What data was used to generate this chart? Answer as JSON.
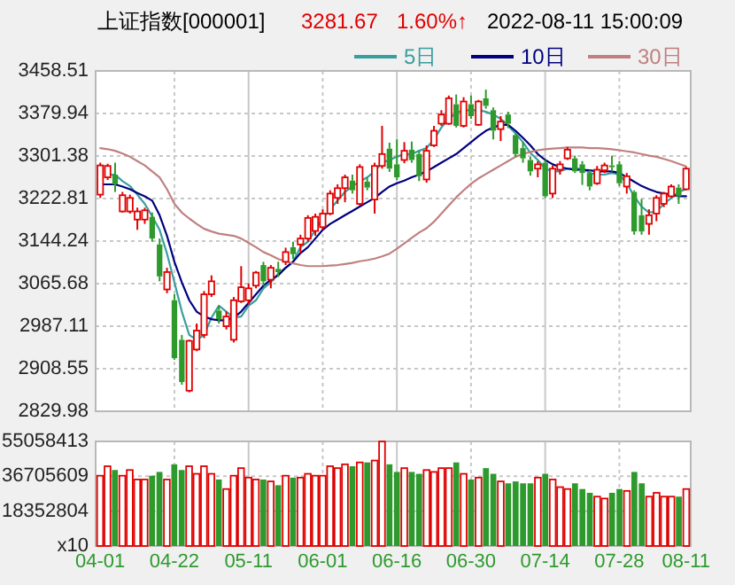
{
  "chart_data": [
    {
      "type": "candlestick",
      "title": "上证指数[000001]",
      "annotations": [
        "3281.67",
        "1.60%↑",
        "2022-08-11 15:00:09"
      ],
      "categories": [
        null,
        null,
        null,
        null,
        null,
        null,
        null,
        null,
        null,
        null,
        null,
        null,
        null,
        null,
        null,
        null,
        null,
        null,
        null,
        null,
        null,
        null,
        null,
        null,
        null,
        null,
        null,
        null,
        null,
        null,
        null,
        null,
        null,
        null,
        null,
        null,
        null,
        null,
        null,
        null,
        null,
        null,
        null,
        null,
        null,
        null,
        null,
        null,
        null,
        null,
        null,
        null,
        null,
        null,
        null,
        null,
        null,
        null,
        null,
        null,
        null,
        null,
        null,
        null,
        null,
        null,
        null,
        null,
        null,
        null,
        null,
        null,
        null,
        null,
        null,
        null,
        null,
        null,
        null,
        null
      ],
      "colors": [
        "#e00000",
        "#e00000",
        "#2e9a2e",
        "#e00000",
        "#e00000",
        "#e00000",
        "#e00000",
        "#2e9a2e",
        "#2e9a2e",
        "#e00000",
        "#2e9a2e",
        "#2e9a2e",
        "#e00000",
        "#e00000",
        "#e00000",
        "#e00000",
        "#2e9a2e",
        "#e00000",
        "#e00000",
        "#e00000",
        "#e00000",
        "#e00000",
        "#2e9a2e",
        "#e00000",
        "#2e9a2e",
        "#e00000",
        "#2e9a2e",
        "#e00000",
        "#e00000",
        "#e00000",
        "#e00000",
        "#e00000",
        "#e00000",
        "#e00000",
        "#2e9a2e",
        "#e00000",
        "#2e9a2e",
        "#e00000",
        "#e00000",
        "#2e9a2e",
        "#2e9a2e",
        "#e00000",
        "#2e9a2e",
        "#2e9a2e",
        "#e00000",
        "#e00000",
        "#e00000",
        "#e00000",
        "#2e9a2e",
        "#e00000",
        "#2e9a2e",
        "#e00000",
        "#2e9a2e",
        "#2e9a2e",
        "#e00000",
        "#2e9a2e",
        "#2e9a2e",
        "#2e9a2e",
        "#2e9a2e",
        "#e00000",
        "#2e9a2e",
        "#e00000",
        "#e00000",
        "#e00000",
        "#2e9a2e",
        "#2e9a2e",
        "#2e9a2e",
        "#e00000",
        "#e00000",
        "#2e9a2e",
        "#2e9a2e",
        "#e00000",
        "#2e9a2e",
        "#2e9a2e",
        "#e00000",
        "#e00000",
        "#e00000",
        "#e00000",
        "#2e9a2e",
        "#e00000"
      ],
      "ohlc": [
        [
          3230,
          3289,
          3224,
          3284
        ],
        [
          3262,
          3287,
          3257,
          3283
        ],
        [
          3267,
          3289,
          3235,
          3249
        ],
        [
          3199,
          3235,
          3197,
          3229
        ],
        [
          3199,
          3230,
          3195,
          3224
        ],
        [
          3184,
          3206,
          3165,
          3199
        ],
        [
          3184,
          3206,
          3176,
          3201
        ],
        [
          3189,
          3197,
          3143,
          3149
        ],
        [
          3138,
          3149,
          3070,
          3079
        ],
        [
          3055,
          3095,
          3048,
          3087
        ],
        [
          3035,
          3046,
          2925,
          2928
        ],
        [
          2962,
          2971,
          2879,
          2884
        ],
        [
          2868,
          2962,
          2865,
          2960
        ],
        [
          2944,
          2992,
          2941,
          2979
        ],
        [
          2971,
          3052,
          2965,
          3046
        ],
        [
          3046,
          3081,
          3041,
          3070
        ],
        [
          3016,
          3025,
          2992,
          3000
        ],
        [
          2987,
          3014,
          2981,
          3005
        ],
        [
          2962,
          3041,
          2957,
          3035
        ],
        [
          3033,
          3098,
          3030,
          3059
        ],
        [
          3035,
          3066,
          3027,
          3057
        ],
        [
          3062,
          3089,
          3057,
          3086
        ],
        [
          3100,
          3106,
          3062,
          3070
        ],
        [
          3073,
          3100,
          3057,
          3095
        ],
        [
          3093,
          3106,
          3078,
          3087
        ],
        [
          3106,
          3132,
          3100,
          3124
        ],
        [
          3133,
          3143,
          3111,
          3120
        ],
        [
          3138,
          3156,
          3122,
          3149
        ],
        [
          3149,
          3192,
          3143,
          3187
        ],
        [
          3163,
          3195,
          3154,
          3189
        ],
        [
          3170,
          3203,
          3165,
          3195
        ],
        [
          3195,
          3238,
          3192,
          3232
        ],
        [
          3224,
          3249,
          3213,
          3242
        ],
        [
          3242,
          3267,
          3216,
          3262
        ],
        [
          3256,
          3267,
          3232,
          3238
        ],
        [
          3213,
          3286,
          3210,
          3281
        ],
        [
          3254,
          3262,
          3238,
          3243
        ],
        [
          3221,
          3289,
          3195,
          3283
        ],
        [
          3283,
          3357,
          3278,
          3305
        ],
        [
          3315,
          3326,
          3272,
          3278
        ],
        [
          3286,
          3332,
          3257,
          3262
        ],
        [
          3294,
          3327,
          3288,
          3311
        ],
        [
          3313,
          3328,
          3289,
          3294
        ],
        [
          3305,
          3311,
          3255,
          3264
        ],
        [
          3258,
          3321,
          3252,
          3311
        ],
        [
          3321,
          3357,
          3318,
          3348
        ],
        [
          3361,
          3386,
          3357,
          3378
        ],
        [
          3361,
          3413,
          3359,
          3408
        ],
        [
          3397,
          3415,
          3354,
          3357
        ],
        [
          3357,
          3410,
          3354,
          3402
        ],
        [
          3397,
          3413,
          3370,
          3375
        ],
        [
          3359,
          3405,
          3357,
          3402
        ],
        [
          3408,
          3424,
          3389,
          3394
        ],
        [
          3386,
          3391,
          3332,
          3348
        ],
        [
          3351,
          3375,
          3329,
          3365
        ],
        [
          3378,
          3383,
          3353,
          3361
        ],
        [
          3340,
          3343,
          3300,
          3305
        ],
        [
          3316,
          3327,
          3289,
          3297
        ],
        [
          3294,
          3300,
          3265,
          3273
        ],
        [
          3278,
          3292,
          3262,
          3286
        ],
        [
          3289,
          3294,
          3224,
          3227
        ],
        [
          3232,
          3284,
          3224,
          3278
        ],
        [
          3276,
          3292,
          3267,
          3286
        ],
        [
          3297,
          3318,
          3294,
          3313
        ],
        [
          3297,
          3302,
          3270,
          3273
        ],
        [
          3286,
          3292,
          3248,
          3270
        ],
        [
          3270,
          3275,
          3238,
          3245
        ],
        [
          3251,
          3283,
          3248,
          3276
        ],
        [
          3275,
          3289,
          3270,
          3284
        ],
        [
          3284,
          3302,
          3273,
          3281
        ],
        [
          3286,
          3292,
          3246,
          3251
        ],
        [
          3245,
          3270,
          3232,
          3264
        ],
        [
          3235,
          3238,
          3156,
          3162
        ],
        [
          3192,
          3222,
          3156,
          3162
        ],
        [
          3176,
          3203,
          3156,
          3192
        ],
        [
          3195,
          3229,
          3181,
          3224
        ],
        [
          3213,
          3235,
          3207,
          3232
        ],
        [
          3227,
          3249,
          3224,
          3245
        ],
        [
          3243,
          3249,
          3213,
          3227
        ],
        [
          3240,
          3281,
          3238,
          3278
        ]
      ],
      "series": [
        {
          "name": "5日",
          "type": "line",
          "color": "#3a9e9e",
          "values": [
            null,
            3267,
            3267,
            3255,
            3246,
            3230,
            3213,
            3190,
            3165,
            3121,
            3068,
            3014,
            2971,
            2962,
            2971,
            3003,
            3025,
            3014,
            3003,
            3005,
            3025,
            3035,
            3057,
            3068,
            3084,
            3095,
            3106,
            3133,
            3143,
            3165,
            3186,
            3203,
            3219,
            3235,
            3246,
            3254,
            3262,
            3273,
            3289,
            3294,
            3300,
            3305,
            3305,
            3311,
            3316,
            3332,
            3354,
            3370,
            3381,
            3386,
            3386,
            3386,
            3383,
            3378,
            3370,
            3357,
            3343,
            3327,
            3307,
            3294,
            3278,
            3273,
            3273,
            3278,
            3278,
            3278,
            3270,
            3267,
            3267,
            3270,
            3267,
            3251,
            3227,
            3208,
            3197,
            3199,
            3213,
            3224,
            3235,
            3240
          ]
        },
        {
          "name": "10日",
          "type": "line",
          "color": "#000080",
          "values": [
            3249,
            3249,
            3249,
            3245,
            3240,
            3233,
            3227,
            3219,
            3192,
            3154,
            3106,
            3068,
            3035,
            3014,
            3005,
            3000,
            2998,
            2998,
            3003,
            3014,
            3030,
            3046,
            3062,
            3073,
            3081,
            3095,
            3106,
            3122,
            3133,
            3149,
            3165,
            3176,
            3184,
            3192,
            3200,
            3208,
            3216,
            3224,
            3235,
            3245,
            3251,
            3256,
            3262,
            3267,
            3273,
            3281,
            3289,
            3297,
            3305,
            3316,
            3327,
            3338,
            3348,
            3354,
            3359,
            3359,
            3348,
            3335,
            3321,
            3305,
            3294,
            3286,
            3281,
            3278,
            3276,
            3276,
            3275,
            3273,
            3273,
            3273,
            3270,
            3262,
            3254,
            3246,
            3240,
            3235,
            3232,
            3230,
            3227,
            3227
          ]
        },
        {
          "name": "30日",
          "type": "line",
          "color": "#c08080",
          "values": [
            3316,
            3314,
            3311,
            3306,
            3300,
            3292,
            3284,
            3273,
            3262,
            3240,
            3213,
            3197,
            3186,
            3176,
            3167,
            3162,
            3158,
            3156,
            3154,
            3149,
            3141,
            3133,
            3124,
            3118,
            3111,
            3107,
            3103,
            3100,
            3098,
            3098,
            3098,
            3099,
            3100,
            3102,
            3104,
            3107,
            3109,
            3112,
            3116,
            3121,
            3130,
            3140,
            3150,
            3160,
            3168,
            3180,
            3195,
            3210,
            3225,
            3238,
            3250,
            3260,
            3268,
            3276,
            3284,
            3292,
            3300,
            3305,
            3309,
            3312,
            3314,
            3315,
            3316,
            3317,
            3317,
            3317,
            3316,
            3316,
            3315,
            3314,
            3312,
            3310,
            3308,
            3305,
            3302,
            3300,
            3296,
            3292,
            3287,
            3282
          ]
        }
      ],
      "ylim": [
        2829.98,
        3458.51
      ],
      "yticks": [
        2829.98,
        2908.55,
        2987.11,
        3065.68,
        3144.24,
        3222.81,
        3301.38,
        3379.94,
        3458.51
      ],
      "grid": true,
      "legend": "top right",
      "tick_labels": "y",
      "line_style": "solid",
      "marker": "none"
    },
    {
      "type": "bar",
      "categories": [
        "04-01",
        null,
        null,
        null,
        null,
        null,
        null,
        null,
        null,
        null,
        "04-22",
        null,
        null,
        null,
        null,
        null,
        null,
        null,
        null,
        null,
        "05-11",
        null,
        null,
        null,
        null,
        null,
        null,
        null,
        null,
        null,
        "06-01",
        null,
        null,
        null,
        null,
        null,
        null,
        null,
        null,
        null,
        "06-16",
        null,
        null,
        null,
        null,
        null,
        null,
        null,
        null,
        null,
        "06-30",
        null,
        null,
        null,
        null,
        null,
        null,
        null,
        null,
        null,
        "07-14",
        null,
        null,
        null,
        null,
        null,
        null,
        null,
        null,
        null,
        "07-28",
        null,
        null,
        null,
        null,
        null,
        null,
        null,
        null,
        "08-11"
      ],
      "values": [
        37000000,
        42000000,
        40000000,
        37000000,
        40000000,
        35000000,
        35000000,
        37000000,
        39000000,
        35000000,
        43000000,
        40000000,
        42000000,
        38000000,
        42000000,
        38000000,
        35000000,
        30000000,
        37000000,
        41000000,
        36000000,
        35000000,
        35000000,
        34000000,
        32000000,
        37000000,
        36000000,
        36000000,
        38000000,
        37000000,
        37000000,
        42000000,
        41000000,
        43000000,
        42000000,
        44000000,
        44000000,
        45000000,
        55000000,
        43000000,
        39000000,
        41000000,
        39000000,
        38000000,
        40000000,
        39000000,
        41000000,
        41000000,
        44000000,
        38000000,
        35000000,
        36000000,
        41000000,
        38000000,
        34000000,
        33000000,
        34000000,
        33000000,
        33000000,
        36000000,
        38000000,
        35000000,
        31000000,
        30000000,
        33000000,
        30000000,
        28000000,
        26000000,
        25000000,
        28000000,
        30000000,
        29000000,
        39000000,
        33000000,
        26000000,
        28000000,
        26000000,
        26000000,
        26000000,
        30000000
      ],
      "colors": [
        "#e00000",
        "#e00000",
        "#2e9a2e",
        "#e00000",
        "#e00000",
        "#e00000",
        "#e00000",
        "#2e9a2e",
        "#2e9a2e",
        "#e00000",
        "#2e9a2e",
        "#2e9a2e",
        "#e00000",
        "#e00000",
        "#e00000",
        "#e00000",
        "#2e9a2e",
        "#e00000",
        "#e00000",
        "#e00000",
        "#e00000",
        "#e00000",
        "#2e9a2e",
        "#e00000",
        "#2e9a2e",
        "#e00000",
        "#2e9a2e",
        "#e00000",
        "#e00000",
        "#e00000",
        "#e00000",
        "#e00000",
        "#e00000",
        "#e00000",
        "#2e9a2e",
        "#e00000",
        "#2e9a2e",
        "#e00000",
        "#e00000",
        "#2e9a2e",
        "#2e9a2e",
        "#e00000",
        "#2e9a2e",
        "#2e9a2e",
        "#e00000",
        "#e00000",
        "#e00000",
        "#e00000",
        "#2e9a2e",
        "#e00000",
        "#2e9a2e",
        "#e00000",
        "#2e9a2e",
        "#2e9a2e",
        "#e00000",
        "#2e9a2e",
        "#2e9a2e",
        "#2e9a2e",
        "#2e9a2e",
        "#e00000",
        "#2e9a2e",
        "#e00000",
        "#e00000",
        "#e00000",
        "#2e9a2e",
        "#2e9a2e",
        "#2e9a2e",
        "#e00000",
        "#e00000",
        "#2e9a2e",
        "#2e9a2e",
        "#e00000",
        "#2e9a2e",
        "#2e9a2e",
        "#e00000",
        "#e00000",
        "#e00000",
        "#e00000",
        "#2e9a2e",
        "#e00000"
      ],
      "ylim": [
        0,
        55058413
      ],
      "yticks": [
        {
          "value": 0,
          "label": "x10"
        },
        18352804,
        36705609,
        55058413
      ],
      "grid": true
    }
  ]
}
